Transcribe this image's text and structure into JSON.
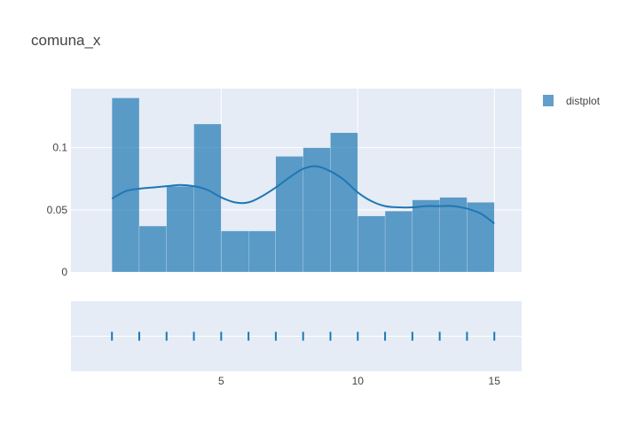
{
  "chart_data": {
    "type": "bar",
    "title": "comuna_x",
    "legend": {
      "position": "top-right",
      "entries": [
        "distplot"
      ]
    },
    "colors": {
      "bar": "#1f77b4",
      "plot_bg": "#e5ecf6",
      "grid": "#ffffff"
    },
    "histogram": {
      "bin_edges": [
        1,
        2,
        3,
        4,
        5,
        6,
        7,
        8,
        9,
        10,
        11,
        12,
        13,
        14,
        15
      ],
      "values": [
        0.14,
        0.037,
        0.069,
        0.119,
        0.033,
        0.033,
        0.093,
        0.1,
        0.112,
        0.045,
        0.049,
        0.058,
        0.06,
        0.056
      ]
    },
    "kde": {
      "x": [
        1,
        1.5,
        2,
        2.5,
        3,
        3.5,
        4,
        4.5,
        5,
        5.5,
        6,
        6.5,
        7,
        7.5,
        8,
        8.5,
        9,
        9.5,
        10,
        10.5,
        11,
        11.5,
        12,
        12.5,
        13,
        13.5,
        14,
        14.5,
        15
      ],
      "y": [
        0.059,
        0.065,
        0.067,
        0.068,
        0.069,
        0.07,
        0.069,
        0.066,
        0.06,
        0.056,
        0.056,
        0.061,
        0.068,
        0.076,
        0.083,
        0.085,
        0.081,
        0.074,
        0.064,
        0.057,
        0.053,
        0.052,
        0.052,
        0.053,
        0.053,
        0.053,
        0.051,
        0.047,
        0.039
      ]
    },
    "rug": [
      1,
      2,
      3,
      4,
      5,
      6,
      7,
      8,
      9,
      10,
      11,
      12,
      13,
      14,
      15
    ],
    "xaxis": {
      "range": [
        -0.5,
        16
      ],
      "tickvals": [
        5,
        10,
        15
      ],
      "ticktext": [
        "5",
        "10",
        "15"
      ]
    },
    "yaxis": {
      "range": [
        0,
        0.1475
      ],
      "tickvals": [
        0,
        0.05,
        0.1
      ],
      "ticktext": [
        "0",
        "0.05",
        "0.1"
      ]
    },
    "grid": true
  }
}
